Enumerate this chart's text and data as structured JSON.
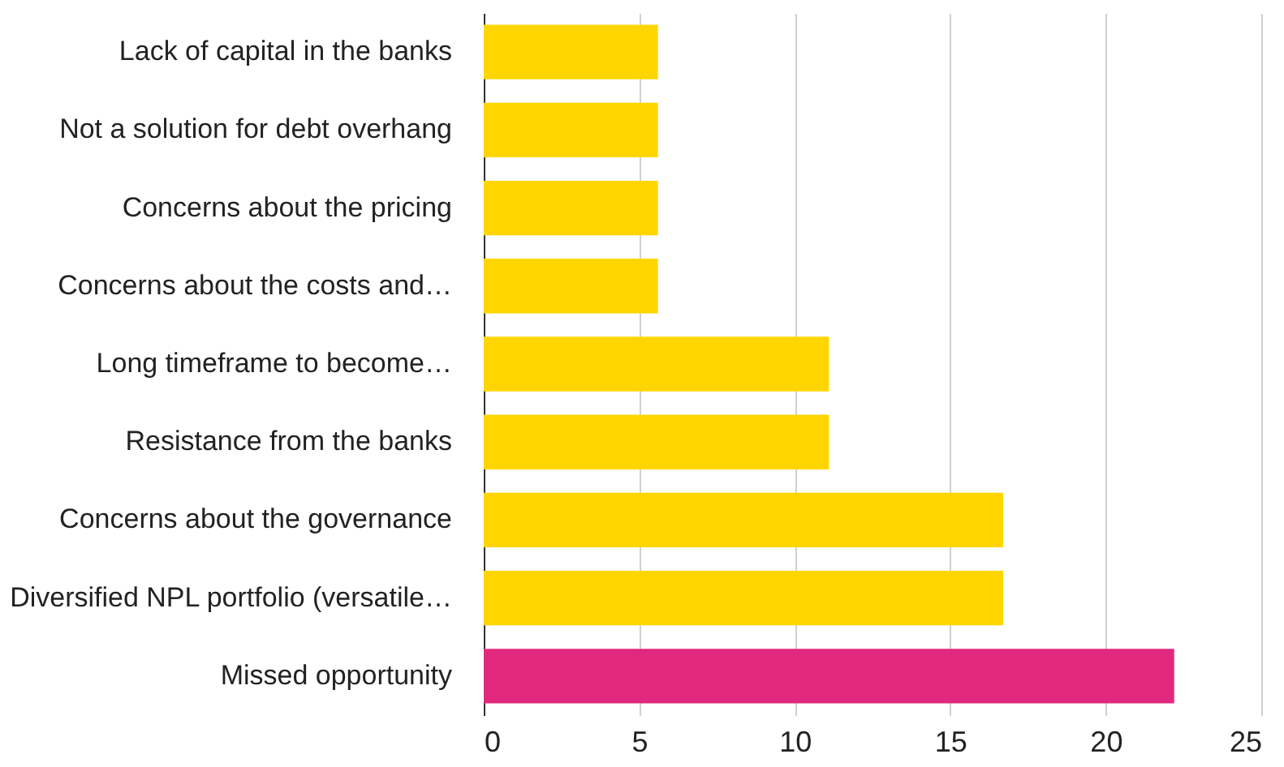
{
  "chart_data": {
    "type": "bar",
    "orientation": "horizontal",
    "categories": [
      "Lack of capital in the banks",
      "Not a solution for debt overhang",
      "Concerns about the pricing",
      "Concerns about the costs and…",
      "Long timeframe to become…",
      "Resistance from the banks",
      "Concerns about the governance",
      "Diversified NPL portfolio (versatile…",
      "Missed opportunity"
    ],
    "values": [
      5.6,
      5.6,
      5.6,
      5.6,
      11.1,
      11.1,
      16.7,
      16.7,
      22.2
    ],
    "colors": [
      "#ffd500",
      "#ffd500",
      "#ffd500",
      "#ffd500",
      "#ffd500",
      "#ffd500",
      "#ffd500",
      "#ffd500",
      "#e0287d"
    ],
    "xlim": [
      0,
      25
    ],
    "xticks": [
      0,
      5,
      10,
      15,
      20,
      25
    ],
    "grid": "x"
  }
}
